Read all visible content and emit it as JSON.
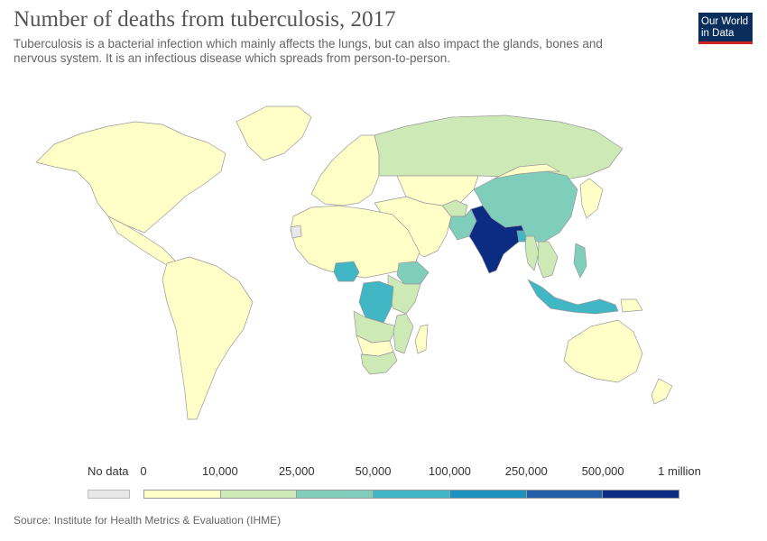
{
  "header": {
    "title": "Number of deaths from tuberculosis, 2017",
    "subtitle": "Tuberculosis is a bacterial infection which mainly affects the lungs, but can also impact the glands, bones and nervous system. It is an infectious disease which spreads from person-to-person."
  },
  "logo": {
    "line1": "Our World",
    "line2": "in Data"
  },
  "legend": {
    "no_data_label": "No data",
    "no_data_color": "#e8e8e8",
    "bins": [
      {
        "from": "0",
        "to": "10,000",
        "color": "#ffffc7"
      },
      {
        "from": "10,000",
        "to": "25,000",
        "color": "#cde9b6"
      },
      {
        "from": "25,000",
        "to": "50,000",
        "color": "#7fcdbb"
      },
      {
        "from": "50,000",
        "to": "100,000",
        "color": "#41b6c4"
      },
      {
        "from": "100,000",
        "to": "250,000",
        "color": "#1d91c0"
      },
      {
        "from": "250,000",
        "to": "500,000",
        "color": "#225ea8"
      },
      {
        "from": "500,000",
        "to": "1 million",
        "color": "#0c2c84"
      }
    ],
    "tick_labels": [
      "0",
      "10,000",
      "25,000",
      "50,000",
      "100,000",
      "250,000",
      "500,000",
      "1 million"
    ]
  },
  "map": {
    "ocean_color": "#ffffff",
    "border_color": "#999999",
    "regions": [
      {
        "name": "North America",
        "bin": 0
      },
      {
        "name": "Greenland",
        "bin": 0
      },
      {
        "name": "Central America & Caribbean",
        "bin": 0
      },
      {
        "name": "South America",
        "bin": 0
      },
      {
        "name": "Europe",
        "bin": 0
      },
      {
        "name": "Russia",
        "bin": 1
      },
      {
        "name": "Kazakhstan & Central Asia",
        "bin": 0
      },
      {
        "name": "Middle East",
        "bin": 0
      },
      {
        "name": "Afghanistan",
        "bin": 1
      },
      {
        "name": "Pakistan",
        "bin": 2
      },
      {
        "name": "India",
        "bin": 6
      },
      {
        "name": "Bangladesh",
        "bin": 3
      },
      {
        "name": "China",
        "bin": 2
      },
      {
        "name": "Mongolia",
        "bin": 0
      },
      {
        "name": "Myanmar",
        "bin": 1
      },
      {
        "name": "Southeast Asia mainland",
        "bin": 1
      },
      {
        "name": "Philippines",
        "bin": 2
      },
      {
        "name": "Indonesia",
        "bin": 3
      },
      {
        "name": "Papua New Guinea",
        "bin": 0
      },
      {
        "name": "Japan & Korea",
        "bin": 0
      },
      {
        "name": "Australia",
        "bin": 0
      },
      {
        "name": "New Zealand",
        "bin": 0
      },
      {
        "name": "North & West Africa",
        "bin": 0
      },
      {
        "name": "Nigeria",
        "bin": 3
      },
      {
        "name": "Ethiopia",
        "bin": 2
      },
      {
        "name": "East Africa",
        "bin": 1
      },
      {
        "name": "DR Congo",
        "bin": 3
      },
      {
        "name": "Angola & Zambia",
        "bin": 1
      },
      {
        "name": "Mozambique",
        "bin": 1
      },
      {
        "name": "South Africa",
        "bin": 1
      },
      {
        "name": "Southern Africa other",
        "bin": 0
      },
      {
        "name": "Madagascar",
        "bin": 0
      },
      {
        "name": "Western Sahara",
        "bin": -1
      }
    ]
  },
  "source": "Source: Institute for Health Metrics & Evaluation (IHME)"
}
